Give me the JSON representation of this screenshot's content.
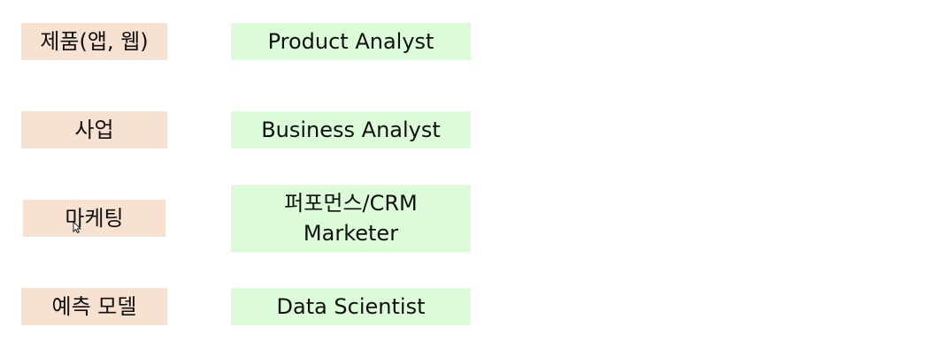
{
  "rows": [
    {
      "domain": "제품(앱, 웹)",
      "role": "Product Analyst"
    },
    {
      "domain": "사업",
      "role": "Business Analyst"
    },
    {
      "domain": "마케팅",
      "role": "퍼포먼스/CRM\nMarketer"
    },
    {
      "domain": "예측 모델",
      "role": "Data Scientist"
    }
  ],
  "colors": {
    "domain_box": "#f7e1d1",
    "role_box": "#dcfbd8"
  },
  "icons": {
    "cursor": "mouse-pointer-icon"
  }
}
